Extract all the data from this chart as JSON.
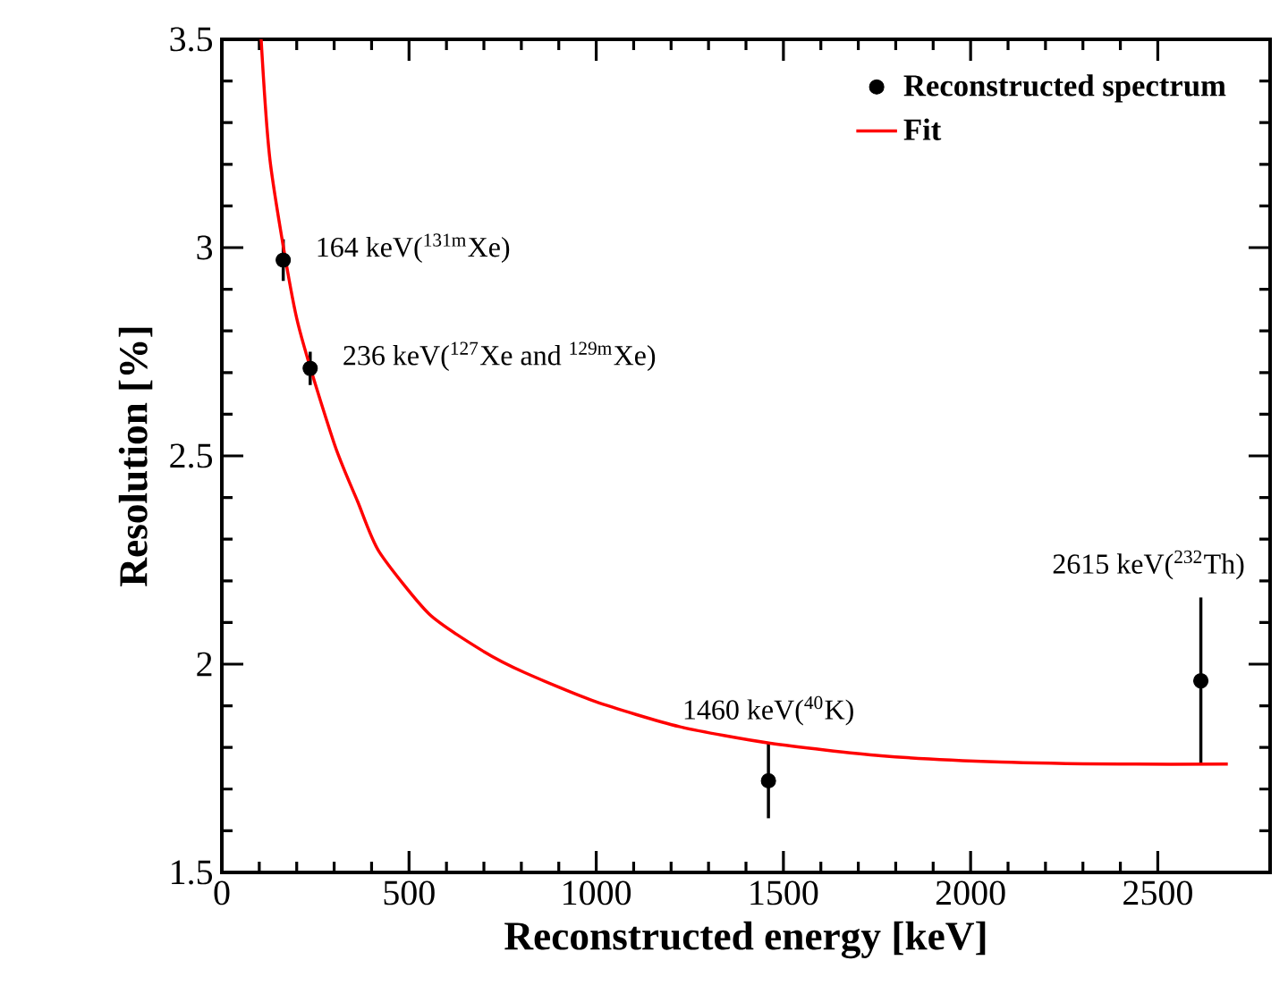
{
  "chart_data": {
    "type": "scatter",
    "xlabel": "Reconstructed energy [keV]",
    "ylabel": "Resolution [%]",
    "xlim": [
      0,
      2800
    ],
    "ylim": [
      1.5,
      3.5
    ],
    "xticks": [
      0,
      500,
      1000,
      1500,
      2000,
      2500
    ],
    "yticks": [
      1.5,
      2,
      2.5,
      3,
      3.5
    ],
    "legend": "top right",
    "series": [
      {
        "name": "Reconstructed spectrum",
        "color": "#000000",
        "marker": "circle",
        "x": [
          164,
          236,
          1460,
          2615
        ],
        "values": [
          2.97,
          2.71,
          1.72,
          1.96
        ],
        "errors": [
          0.05,
          0.04,
          0.09,
          0.2
        ]
      },
      {
        "name": "Fit",
        "type": "line",
        "color": "#ff0000",
        "marker": "none",
        "x": [
          105,
          130,
          200,
          300,
          363,
          420,
          554,
          700,
          808,
          998,
          1222,
          1465,
          1761,
          2081,
          2401,
          2687
        ],
        "values": [
          3.5,
          3.2,
          2.83,
          2.53,
          2.39,
          2.27,
          2.12,
          2.03,
          1.98,
          1.91,
          1.85,
          1.81,
          1.78,
          1.765,
          1.76,
          1.76
        ]
      }
    ],
    "annotations": [
      {
        "text": "164 keV($^{131m}$Xe)",
        "x": 164,
        "y": 2.97
      },
      {
        "text": "236 keV($^{127}$Xe and $^{129m}$Xe)",
        "x": 236,
        "y": 2.71
      },
      {
        "text": "1460 keV($^{40}$K)",
        "x": 1460,
        "y": 1.81
      },
      {
        "text": "2615 keV($^{232}$Th)",
        "x": 2615,
        "y": 2.16
      }
    ]
  }
}
